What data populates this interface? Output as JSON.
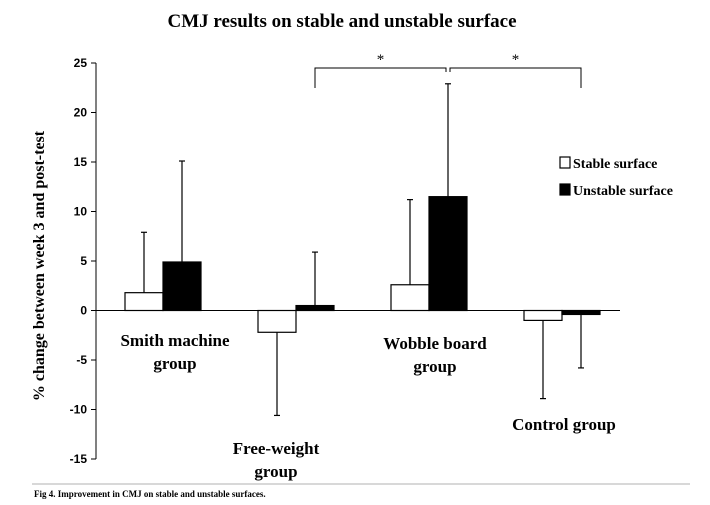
{
  "chart_data": {
    "type": "bar",
    "title": "CMJ results on stable and unstable surface",
    "ylabel": "% change between week 3 and post-test",
    "xlabel": "",
    "ylim": [
      -15,
      25
    ],
    "yticks": [
      25,
      20,
      15,
      10,
      5,
      0,
      -5,
      -10,
      -15
    ],
    "grid": false,
    "legend_position": "right",
    "categories": [
      [
        "Smith machine",
        "group"
      ],
      [
        "Free-weight",
        "group"
      ],
      [
        "Wobble board",
        "group"
      ],
      [
        "Control group"
      ]
    ],
    "series": [
      {
        "name": "Stable surface",
        "color": "#ffffff",
        "values": [
          1.8,
          -2.2,
          2.6,
          -1.0
        ],
        "error": [
          6.1,
          8.4,
          8.6,
          7.9
        ]
      },
      {
        "name": "Unstable surface",
        "color": "#000000",
        "values": [
          4.9,
          0.5,
          11.5,
          -0.4
        ],
        "error": [
          10.2,
          5.4,
          11.4,
          5.4
        ]
      }
    ],
    "annotations": [
      {
        "text": "*",
        "between": [
          "Free-weight group",
          "Wobble board group"
        ],
        "series": "Unstable surface"
      },
      {
        "text": "*",
        "between": [
          "Wobble board group",
          "Control group"
        ],
        "series": "Unstable surface"
      }
    ]
  },
  "caption": "Fig 4. Improvement in CMJ on stable and unstable surfaces."
}
